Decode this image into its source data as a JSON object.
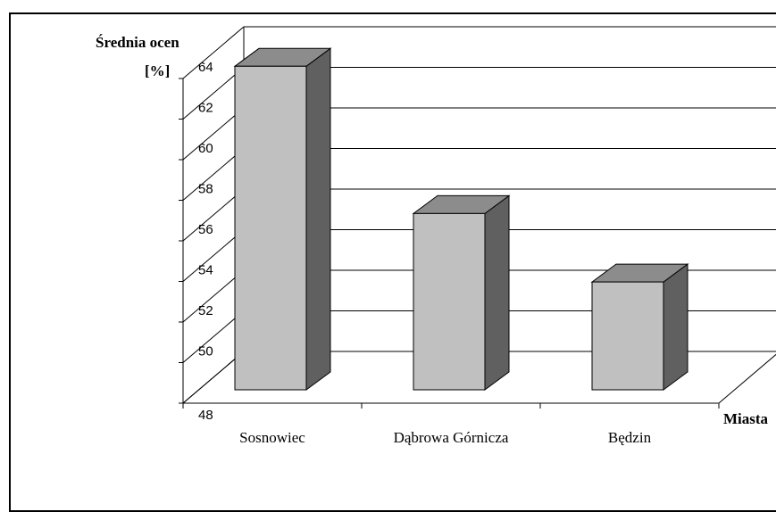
{
  "chart_data": {
    "type": "bar",
    "style": "3d",
    "ylabel": "Średnia ocen",
    "yunit": "[%]",
    "xlabel": "Miasta",
    "categories": [
      "Sosnowiec",
      "Dąbrowa Górnicza",
      "Będzin"
    ],
    "values": [
      63.6,
      56.5,
      53.2
    ],
    "ylim": [
      48,
      64
    ],
    "yticks": [
      48,
      50,
      52,
      54,
      56,
      58,
      60,
      62,
      64
    ],
    "grid": true,
    "colors": {
      "bar_front": "#c0c0c0",
      "bar_top": "#8c8c8c",
      "bar_side": "#606060",
      "axis": "#000000",
      "grid": "#000000"
    }
  }
}
